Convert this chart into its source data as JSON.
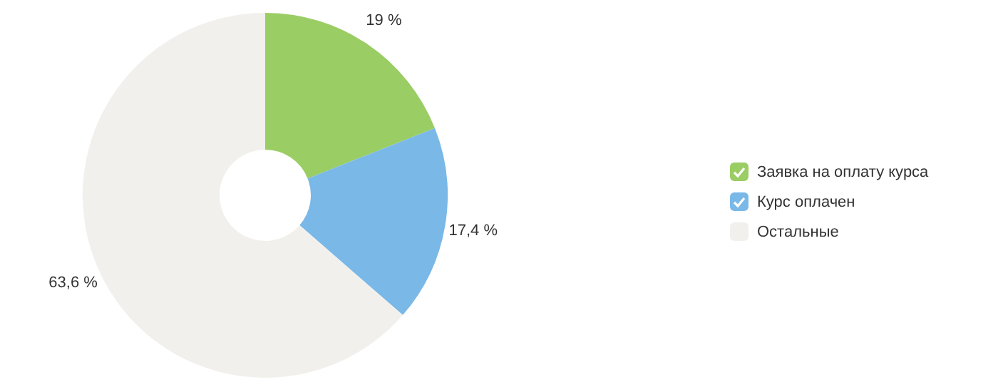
{
  "chart_data": {
    "type": "donut",
    "categories": [
      "Заявка на оплату курса",
      "Курс оплачен",
      "Остальные"
    ],
    "values": [
      19,
      17.4,
      63.6
    ],
    "colors": [
      "#9acd64",
      "#7ab8e8",
      "#f1f0ec"
    ],
    "value_labels": [
      "19 %",
      "17,4 %",
      "63,6 %"
    ],
    "legend": "right"
  }
}
